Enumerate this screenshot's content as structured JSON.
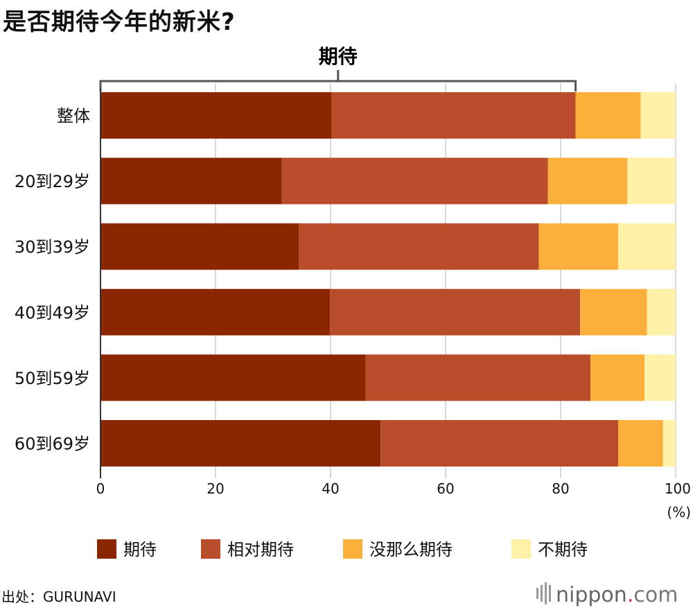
{
  "title": "是否期待今年的新米?",
  "bracket_label": "期待",
  "source": "出处：GURUNAVI",
  "brand": {
    "name": "nippon",
    "dot": ".",
    "tld": "com"
  },
  "chart_data": {
    "type": "bar",
    "orientation": "horizontal",
    "stacked": true,
    "categories": [
      "整体",
      "20到29岁",
      "30到39岁",
      "40到49岁",
      "50到59岁",
      "60到69岁"
    ],
    "series": [
      {
        "name": "期待",
        "color": "#8b2700",
        "values": [
          40.2,
          31.5,
          34.5,
          39.9,
          46.1,
          48.7
        ]
      },
      {
        "name": "相对期待",
        "color": "#b84c2b",
        "values": [
          42.4,
          46.3,
          41.7,
          43.5,
          39.1,
          41.3
        ]
      },
      {
        "name": "没那么期待",
        "color": "#fbb03b",
        "values": [
          11.3,
          13.8,
          13.8,
          11.6,
          9.4,
          7.8
        ]
      },
      {
        "name": "不期待",
        "color": "#fff1a8",
        "values": [
          6.1,
          8.4,
          10.0,
          5.0,
          5.4,
          2.2
        ]
      }
    ],
    "xlim": [
      0,
      100
    ],
    "xticks": [
      0,
      20,
      40,
      60,
      80,
      100
    ],
    "xunit": "(%)",
    "grid": true,
    "legend_position": "bottom",
    "bracket_range": [
      0,
      82.6
    ]
  }
}
